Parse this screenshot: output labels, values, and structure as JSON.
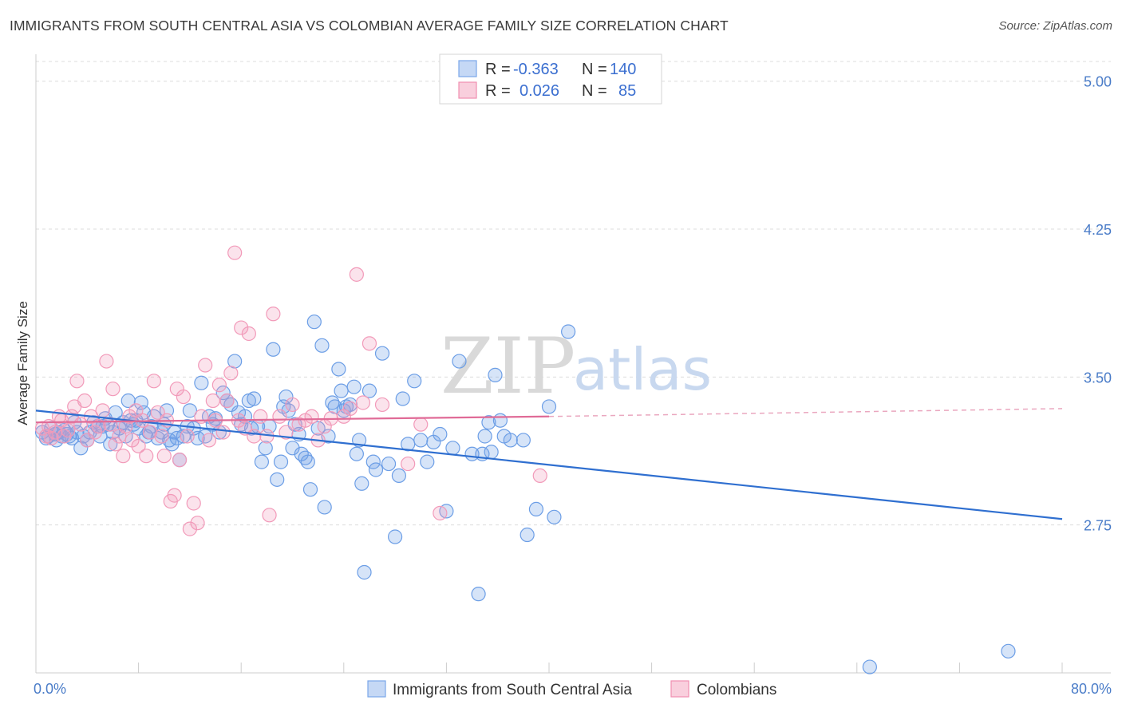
{
  "header": {
    "title": "IMMIGRANTS FROM SOUTH CENTRAL ASIA VS COLOMBIAN AVERAGE FAMILY SIZE CORRELATION CHART",
    "source": "Source: ZipAtlas.com"
  },
  "watermark": {
    "zip": "ZIP",
    "atlas": "atlas"
  },
  "legend": {
    "rows": [
      {
        "r_label": "R =",
        "r_value": "-0.363",
        "n_label": "N =",
        "n_value": "140",
        "color": "#7aa6e8"
      },
      {
        "r_label": "R =",
        "r_value": "0.026",
        "n_label": "N =",
        "n_value": "85",
        "color": "#f08fb0"
      }
    ]
  },
  "colors": {
    "blue": "#6c9ee6",
    "blue_line": "#2f6fd0",
    "pink": "#f29ab9",
    "pink_line": "#e06b97"
  },
  "chart_data": {
    "type": "scatter",
    "title": "IMMIGRANTS FROM SOUTH CENTRAL ASIA VS COLOMBIAN AVERAGE FAMILY SIZE CORRELATION CHART",
    "xlabel": "",
    "ylabel": "Average Family Size",
    "xlim": [
      0,
      80
    ],
    "ylim": [
      2.0,
      5.1
    ],
    "x_tick_labels": [
      "0.0%",
      "80.0%"
    ],
    "y_ticks": [
      2.75,
      3.5,
      4.25,
      5.0
    ],
    "y_tick_labels": [
      "2.75",
      "3.50",
      "4.25",
      "5.00"
    ],
    "grid": true,
    "legend_position": "top-center",
    "series": [
      {
        "name": "Immigrants from South Central Asia",
        "color": "#6c9ee6",
        "trend": {
          "x": [
            0,
            80
          ],
          "y": [
            3.33,
            2.78
          ],
          "style": "solid"
        },
        "points": [
          [
            0.5,
            3.22
          ],
          [
            0.8,
            3.19
          ],
          [
            1.0,
            3.2
          ],
          [
            1.2,
            3.24
          ],
          [
            1.5,
            3.21
          ],
          [
            1.6,
            3.18
          ],
          [
            1.8,
            3.22
          ],
          [
            2.0,
            3.2
          ],
          [
            2.2,
            3.23
          ],
          [
            2.4,
            3.21
          ],
          [
            2.6,
            3.2
          ],
          [
            2.8,
            3.19
          ],
          [
            3.0,
            3.27
          ],
          [
            3.2,
            3.22
          ],
          [
            3.5,
            3.14
          ],
          [
            3.7,
            3.2
          ],
          [
            4.0,
            3.18
          ],
          [
            4.2,
            3.22
          ],
          [
            4.5,
            3.27
          ],
          [
            4.8,
            3.25
          ],
          [
            5.0,
            3.2
          ],
          [
            5.2,
            3.25
          ],
          [
            5.4,
            3.29
          ],
          [
            5.6,
            3.26
          ],
          [
            5.8,
            3.16
          ],
          [
            6.0,
            3.22
          ],
          [
            6.2,
            3.32
          ],
          [
            6.5,
            3.24
          ],
          [
            6.8,
            3.27
          ],
          [
            7.0,
            3.2
          ],
          [
            7.2,
            3.38
          ],
          [
            7.4,
            3.28
          ],
          [
            7.6,
            3.26
          ],
          [
            7.8,
            3.28
          ],
          [
            8.0,
            3.24
          ],
          [
            8.2,
            3.37
          ],
          [
            8.4,
            3.32
          ],
          [
            8.6,
            3.2
          ],
          [
            8.8,
            3.22
          ],
          [
            9.0,
            3.25
          ],
          [
            9.2,
            3.3
          ],
          [
            9.5,
            3.19
          ],
          [
            9.8,
            3.22
          ],
          [
            10.0,
            3.26
          ],
          [
            10.2,
            3.33
          ],
          [
            10.4,
            3.18
          ],
          [
            10.6,
            3.16
          ],
          [
            10.8,
            3.22
          ],
          [
            11.0,
            3.19
          ],
          [
            11.2,
            3.08
          ],
          [
            11.5,
            3.2
          ],
          [
            11.8,
            3.25
          ],
          [
            12.0,
            3.33
          ],
          [
            12.3,
            3.24
          ],
          [
            12.6,
            3.19
          ],
          [
            12.9,
            3.47
          ],
          [
            13.2,
            3.2
          ],
          [
            13.5,
            3.3
          ],
          [
            13.8,
            3.26
          ],
          [
            14.0,
            3.29
          ],
          [
            14.3,
            3.22
          ],
          [
            14.6,
            3.42
          ],
          [
            14.9,
            3.38
          ],
          [
            15.2,
            3.36
          ],
          [
            15.5,
            3.58
          ],
          [
            15.8,
            3.32
          ],
          [
            16.0,
            3.26
          ],
          [
            16.3,
            3.3
          ],
          [
            16.6,
            3.38
          ],
          [
            16.8,
            3.24
          ],
          [
            17.0,
            3.39
          ],
          [
            17.3,
            3.25
          ],
          [
            17.6,
            3.07
          ],
          [
            17.9,
            3.14
          ],
          [
            18.2,
            3.25
          ],
          [
            18.5,
            3.64
          ],
          [
            18.8,
            2.98
          ],
          [
            19.1,
            3.07
          ],
          [
            19.3,
            3.35
          ],
          [
            19.5,
            3.4
          ],
          [
            19.7,
            3.33
          ],
          [
            20.0,
            3.14
          ],
          [
            20.2,
            3.26
          ],
          [
            20.5,
            3.21
          ],
          [
            20.7,
            3.11
          ],
          [
            21.0,
            3.09
          ],
          [
            21.2,
            3.07
          ],
          [
            21.4,
            2.93
          ],
          [
            21.7,
            3.78
          ],
          [
            22.0,
            3.24
          ],
          [
            22.3,
            3.66
          ],
          [
            22.5,
            2.84
          ],
          [
            22.8,
            3.2
          ],
          [
            23.1,
            3.37
          ],
          [
            23.3,
            3.35
          ],
          [
            23.6,
            3.54
          ],
          [
            23.8,
            3.43
          ],
          [
            24.0,
            3.33
          ],
          [
            24.2,
            3.35
          ],
          [
            24.5,
            3.36
          ],
          [
            24.8,
            3.45
          ],
          [
            25.0,
            3.11
          ],
          [
            25.2,
            3.18
          ],
          [
            25.4,
            2.96
          ],
          [
            25.6,
            2.51
          ],
          [
            26.0,
            3.43
          ],
          [
            26.3,
            3.07
          ],
          [
            26.5,
            3.03
          ],
          [
            27.0,
            3.62
          ],
          [
            27.5,
            3.06
          ],
          [
            28.0,
            2.69
          ],
          [
            28.3,
            3.0
          ],
          [
            28.6,
            3.39
          ],
          [
            29.0,
            3.16
          ],
          [
            29.5,
            3.48
          ],
          [
            30.0,
            3.18
          ],
          [
            30.5,
            3.07
          ],
          [
            31.0,
            3.17
          ],
          [
            31.5,
            3.21
          ],
          [
            32.0,
            2.82
          ],
          [
            32.5,
            3.14
          ],
          [
            33.0,
            3.58
          ],
          [
            34.0,
            3.11
          ],
          [
            34.5,
            2.4
          ],
          [
            34.8,
            3.11
          ],
          [
            35.0,
            3.2
          ],
          [
            35.3,
            3.27
          ],
          [
            35.5,
            3.12
          ],
          [
            35.8,
            3.51
          ],
          [
            36.2,
            3.28
          ],
          [
            36.5,
            3.2
          ],
          [
            37.0,
            3.18
          ],
          [
            38.0,
            3.18
          ],
          [
            39.0,
            2.83
          ],
          [
            40.0,
            3.35
          ],
          [
            41.5,
            3.73
          ],
          [
            65.0,
            2.03
          ],
          [
            75.8,
            2.11
          ],
          [
            40.4,
            2.79
          ],
          [
            38.3,
            2.7
          ]
        ]
      },
      {
        "name": "Colombians",
        "color": "#f29ab9",
        "trend": {
          "x": [
            0,
            40
          ],
          "y": [
            3.27,
            3.3
          ],
          "style": "solid",
          "dashed_to": [
            80,
            3.34
          ]
        },
        "points": [
          [
            0.5,
            3.24
          ],
          [
            0.8,
            3.2
          ],
          [
            1.0,
            3.25
          ],
          [
            1.2,
            3.19
          ],
          [
            1.5,
            3.22
          ],
          [
            1.8,
            3.3
          ],
          [
            2.0,
            3.28
          ],
          [
            2.2,
            3.2
          ],
          [
            2.5,
            3.23
          ],
          [
            2.8,
            3.3
          ],
          [
            3.0,
            3.35
          ],
          [
            3.2,
            3.48
          ],
          [
            3.5,
            3.26
          ],
          [
            3.8,
            3.38
          ],
          [
            4.0,
            3.18
          ],
          [
            4.3,
            3.3
          ],
          [
            4.6,
            3.22
          ],
          [
            4.9,
            3.25
          ],
          [
            5.2,
            3.33
          ],
          [
            5.5,
            3.58
          ],
          [
            5.8,
            3.26
          ],
          [
            6.0,
            3.44
          ],
          [
            6.2,
            3.16
          ],
          [
            6.5,
            3.2
          ],
          [
            6.8,
            3.1
          ],
          [
            7.0,
            3.25
          ],
          [
            7.3,
            3.3
          ],
          [
            7.5,
            3.18
          ],
          [
            7.8,
            3.33
          ],
          [
            8.0,
            3.15
          ],
          [
            8.3,
            3.28
          ],
          [
            8.6,
            3.1
          ],
          [
            8.9,
            3.22
          ],
          [
            9.2,
            3.48
          ],
          [
            9.5,
            3.32
          ],
          [
            9.8,
            3.2
          ],
          [
            10.0,
            3.1
          ],
          [
            10.2,
            3.28
          ],
          [
            10.5,
            2.87
          ],
          [
            10.8,
            2.9
          ],
          [
            11.0,
            3.44
          ],
          [
            11.2,
            3.08
          ],
          [
            11.5,
            3.4
          ],
          [
            11.8,
            3.2
          ],
          [
            12.0,
            2.73
          ],
          [
            12.3,
            2.86
          ],
          [
            12.6,
            2.76
          ],
          [
            12.9,
            3.3
          ],
          [
            13.2,
            3.56
          ],
          [
            13.5,
            3.18
          ],
          [
            13.8,
            3.38
          ],
          [
            14.0,
            3.28
          ],
          [
            14.3,
            3.46
          ],
          [
            14.6,
            3.22
          ],
          [
            14.9,
            3.38
          ],
          [
            15.2,
            3.52
          ],
          [
            15.5,
            4.13
          ],
          [
            15.8,
            3.28
          ],
          [
            16.0,
            3.75
          ],
          [
            16.3,
            3.24
          ],
          [
            16.6,
            3.72
          ],
          [
            17.0,
            3.2
          ],
          [
            17.5,
            3.3
          ],
          [
            18.0,
            3.2
          ],
          [
            18.2,
            2.8
          ],
          [
            18.5,
            3.82
          ],
          [
            19.0,
            3.3
          ],
          [
            19.5,
            3.22
          ],
          [
            20.0,
            3.36
          ],
          [
            20.5,
            3.26
          ],
          [
            21.0,
            3.28
          ],
          [
            21.5,
            3.3
          ],
          [
            22.0,
            3.18
          ],
          [
            22.5,
            3.25
          ],
          [
            23.0,
            3.29
          ],
          [
            24.0,
            3.3
          ],
          [
            24.5,
            3.34
          ],
          [
            25.0,
            4.02
          ],
          [
            25.5,
            3.37
          ],
          [
            26.0,
            3.67
          ],
          [
            27.0,
            3.36
          ],
          [
            29.0,
            3.06
          ],
          [
            30.0,
            3.26
          ],
          [
            31.5,
            2.81
          ],
          [
            39.3,
            3.0
          ]
        ]
      }
    ],
    "extra_points_note_removed": true
  },
  "bottom_legend": {
    "items": [
      {
        "label": "Immigrants from South Central Asia"
      },
      {
        "label": "Colombians"
      }
    ]
  }
}
